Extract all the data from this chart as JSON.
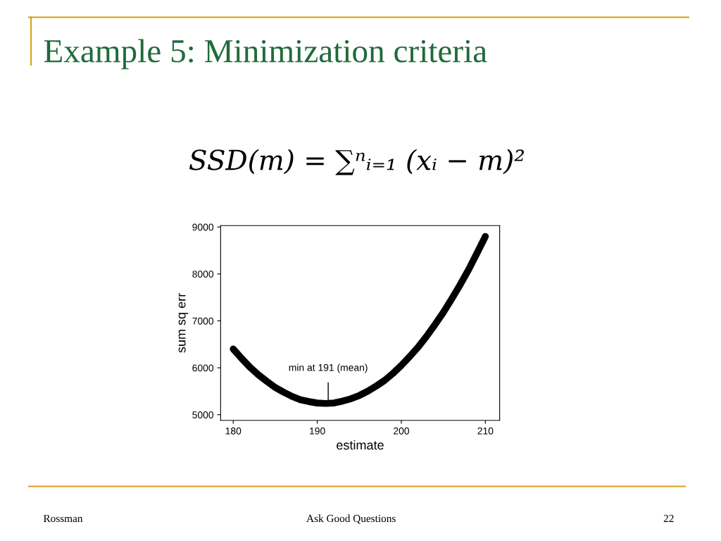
{
  "chart_data": {
    "type": "line",
    "title": "Example 5: Minimization criteria",
    "subtitle": "SSD(m) = ∑ⁿᵢ₌₁ (xᵢ − m)²",
    "xlabel": "estimate",
    "ylabel": "sum sq err",
    "x": [
      180,
      181,
      182,
      183,
      184,
      185,
      186,
      187,
      188,
      189,
      190,
      191,
      192,
      193,
      194,
      195,
      196,
      197,
      198,
      199,
      200,
      201,
      202,
      203,
      204,
      205,
      206,
      207,
      208,
      209,
      210
    ],
    "series": [
      {
        "color": "#000000",
        "values": [
          6400,
          6200,
          6010,
          5850,
          5710,
          5580,
          5480,
          5390,
          5320,
          5280,
          5250,
          5240,
          5250,
          5290,
          5340,
          5410,
          5500,
          5610,
          5730,
          5880,
          6050,
          6240,
          6440,
          6670,
          6920,
          7180,
          7470,
          7770,
          8090,
          8440,
          8800
        ]
      }
    ],
    "xlim": [
      178.5,
      211.7
    ],
    "xticks": [
      180,
      190,
      200,
      210
    ],
    "ylim": [
      4880,
      9030
    ],
    "yticks": [
      5000,
      6000,
      7000,
      8000,
      9000
    ],
    "grid": false,
    "legend": false,
    "marker": "none",
    "line_style": "solid",
    "annotations": [
      {
        "text": "min at 191 (mean)",
        "x": 191.3,
        "y": 5240
      },
      "Rossman",
      "Ask Good Questions",
      "22"
    ]
  }
}
